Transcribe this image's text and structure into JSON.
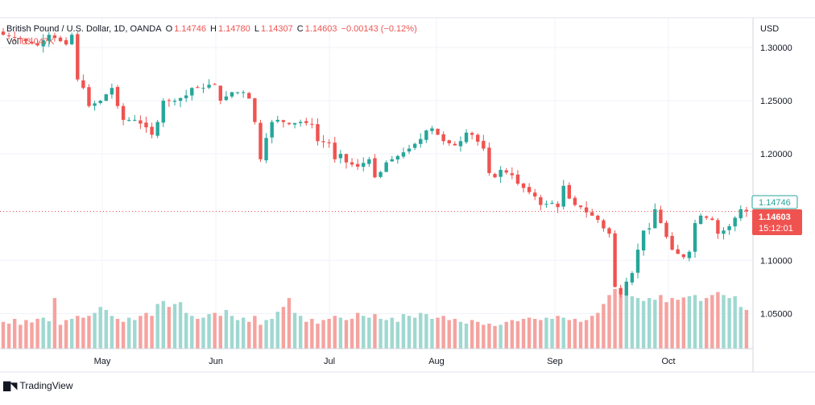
{
  "header": {
    "symbol": "British Pound / U.S. Dollar, 1D, OANDA",
    "open_label": "O",
    "open": "1.14746",
    "high_label": "H",
    "high": "1.14780",
    "low_label": "L",
    "low": "1.14307",
    "close_label": "C",
    "close": "1.14603",
    "change": "−0.00143 (−0.12%)",
    "vol_label": "Vol",
    "vol_value": "63.047K"
  },
  "axis": {
    "currency": "USD",
    "price_ticks": [
      "1.30000",
      "1.25000",
      "1.20000",
      "1.10000",
      "1.05000"
    ],
    "month_labels": [
      "May",
      "Jun",
      "Jul",
      "Aug",
      "Sep",
      "Oct"
    ]
  },
  "price_tags": {
    "open_tag": "1.14746",
    "last_tag": "1.14603",
    "countdown": "15:12:01"
  },
  "brand": {
    "name": "TradingView"
  },
  "colors": {
    "up": "#26a69a",
    "down": "#ef5350",
    "vol_up": "#9fd8d1",
    "vol_down": "#f5a3a0",
    "grid": "#f0f3fa"
  },
  "chart_data": {
    "type": "candlestick",
    "title": "British Pound / U.S. Dollar, 1D, OANDA",
    "ylabel": "USD",
    "ylim": [
      1.02,
      1.325
    ],
    "y_ticks": [
      1.3,
      1.25,
      1.2,
      1.1,
      1.05
    ],
    "x_ticks": [
      "May",
      "Jun",
      "Jul",
      "Aug",
      "Sep",
      "Oct"
    ],
    "grid": true,
    "last_price": 1.14603,
    "close_path": [
      [
        0,
        1.312
      ],
      [
        3,
        1.308
      ],
      [
        6,
        1.302
      ],
      [
        8,
        1.312
      ],
      [
        10,
        1.306
      ],
      [
        11,
        1.303
      ],
      [
        12,
        1.312
      ],
      [
        13,
        1.27
      ],
      [
        14,
        1.262
      ],
      [
        15,
        1.245
      ],
      [
        17,
        1.25
      ],
      [
        19,
        1.262
      ],
      [
        20,
        1.245
      ],
      [
        21,
        1.232
      ],
      [
        23,
        1.232
      ],
      [
        25,
        1.225
      ],
      [
        26,
        1.218
      ],
      [
        27,
        1.23
      ],
      [
        28,
        1.25
      ],
      [
        30,
        1.25
      ],
      [
        32,
        1.255
      ],
      [
        33,
        1.262
      ],
      [
        35,
        1.262
      ],
      [
        36,
        1.265
      ],
      [
        37,
        1.265
      ],
      [
        38,
        1.25
      ],
      [
        40,
        1.258
      ],
      [
        42,
        1.258
      ],
      [
        43,
        1.252
      ],
      [
        44,
        1.23
      ],
      [
        45,
        1.195
      ],
      [
        46,
        1.215
      ],
      [
        47,
        1.23
      ],
      [
        48,
        1.232
      ],
      [
        50,
        1.228
      ],
      [
        52,
        1.23
      ],
      [
        54,
        1.228
      ],
      [
        55,
        1.212
      ],
      [
        57,
        1.21
      ],
      [
        58,
        1.195
      ],
      [
        59,
        1.2
      ],
      [
        60,
        1.192
      ],
      [
        62,
        1.188
      ],
      [
        64,
        1.195
      ],
      [
        65,
        1.178
      ],
      [
        66,
        1.183
      ],
      [
        67,
        1.192
      ],
      [
        69,
        1.198
      ],
      [
        71,
        1.205
      ],
      [
        73,
        1.214
      ],
      [
        74,
        1.222
      ],
      [
        75,
        1.224
      ],
      [
        77,
        1.212
      ],
      [
        79,
        1.208
      ],
      [
        80,
        1.212
      ],
      [
        81,
        1.22
      ],
      [
        82,
        1.218
      ],
      [
        84,
        1.205
      ],
      [
        85,
        1.182
      ],
      [
        86,
        1.178
      ],
      [
        87,
        1.185
      ],
      [
        89,
        1.18
      ],
      [
        90,
        1.172
      ],
      [
        91,
        1.168
      ],
      [
        93,
        1.16
      ],
      [
        94,
        1.152
      ],
      [
        96,
        1.154
      ],
      [
        97,
        1.15
      ],
      [
        98,
        1.17
      ],
      [
        99,
        1.158
      ],
      [
        100,
        1.152
      ],
      [
        101,
        1.15
      ],
      [
        102,
        1.145
      ],
      [
        103,
        1.142
      ],
      [
        104,
        1.138
      ],
      [
        105,
        1.13
      ],
      [
        106,
        1.125
      ],
      [
        107,
        1.075
      ],
      [
        108,
        1.068
      ],
      [
        109,
        1.08
      ],
      [
        110,
        1.088
      ],
      [
        111,
        1.11
      ],
      [
        112,
        1.128
      ],
      [
        113,
        1.13
      ],
      [
        114,
        1.148
      ],
      [
        116,
        1.122
      ],
      [
        117,
        1.11
      ],
      [
        118,
        1.106
      ],
      [
        119,
        1.103
      ],
      [
        120,
        1.108
      ],
      [
        121,
        1.135
      ],
      [
        122,
        1.142
      ],
      [
        124,
        1.138
      ],
      [
        125,
        1.125
      ],
      [
        126,
        1.128
      ],
      [
        127,
        1.132
      ],
      [
        129,
        1.148
      ],
      [
        130,
        1.14603
      ]
    ],
    "volume": {
      "label": "Vol",
      "last": "63.047K",
      "relative_heights": [
        0.45,
        0.42,
        0.5,
        0.4,
        0.48,
        0.44,
        0.5,
        0.52,
        0.46,
        0.85,
        0.4,
        0.48,
        0.5,
        0.55,
        0.52,
        0.55,
        0.6,
        0.7,
        0.65,
        0.55,
        0.5,
        0.45,
        0.52,
        0.48,
        0.55,
        0.6,
        0.55,
        0.75,
        0.8,
        0.7,
        0.75,
        0.78,
        0.6,
        0.55,
        0.5,
        0.52,
        0.58,
        0.6,
        0.55,
        0.65,
        0.55,
        0.48,
        0.52,
        0.45,
        0.55,
        0.4,
        0.48,
        0.5,
        0.62,
        0.7,
        0.85,
        0.6,
        0.55,
        0.45,
        0.5,
        0.42,
        0.48,
        0.5,
        0.55,
        0.52,
        0.48,
        0.5,
        0.6,
        0.55,
        0.52,
        0.58,
        0.5,
        0.48,
        0.52,
        0.45,
        0.58,
        0.55,
        0.52,
        0.6,
        0.58,
        0.5,
        0.52,
        0.55,
        0.48,
        0.5,
        0.45,
        0.42,
        0.48,
        0.45,
        0.4,
        0.42,
        0.38,
        0.4,
        0.45,
        0.48,
        0.46,
        0.5,
        0.52,
        0.5,
        0.48,
        0.52,
        0.5,
        0.55,
        0.52,
        0.48,
        0.5,
        0.45,
        0.48,
        0.55,
        0.6,
        0.75,
        0.9,
        1.0,
        0.92,
        0.98,
        0.88,
        0.85,
        0.8,
        0.85,
        0.82,
        0.9,
        0.78,
        0.85,
        0.82,
        0.86,
        0.88,
        0.9,
        0.8,
        0.85,
        0.9,
        0.95,
        0.9,
        0.85,
        0.88,
        0.7,
        0.65
      ]
    }
  }
}
